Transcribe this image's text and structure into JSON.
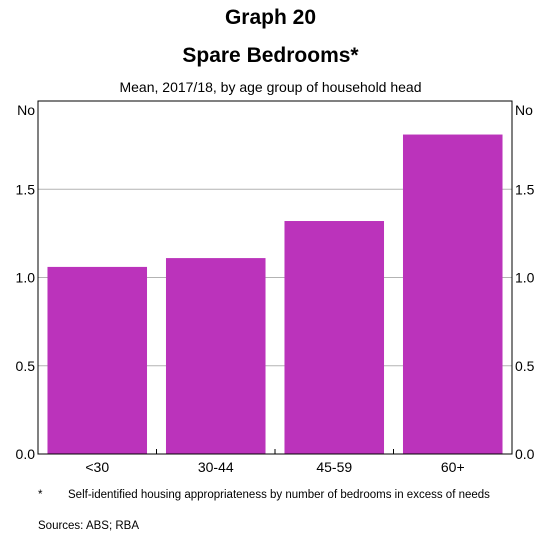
{
  "header": {
    "graph_number": "Graph 20",
    "title": "Spare Bedrooms*",
    "subtitle": "Mean, 2017/18, by age group of household head"
  },
  "footnote": {
    "marker": "*",
    "text": "Self-identified housing appropriateness by number of bedrooms in excess of needs"
  },
  "sources": "Sources: ABS; RBA",
  "colors": {
    "bar": "#bb33bb",
    "grid": "#b3b3b3",
    "axis": "#000000"
  },
  "chart_data": {
    "type": "bar",
    "title": "Spare Bedrooms*",
    "subtitle": "Mean, 2017/18, by age group of household head",
    "categories": [
      "<30",
      "30-44",
      "45-59",
      "60+"
    ],
    "values": [
      1.06,
      1.11,
      1.32,
      1.81
    ],
    "ylim": [
      0,
      2.0
    ],
    "yticks": [
      0.0,
      0.5,
      1.0,
      1.5
    ],
    "ytick_labels": [
      "0.0",
      "0.5",
      "1.0",
      "1.5"
    ],
    "ylabel_left": "No",
    "ylabel_right": "No",
    "grid": true,
    "legend": "none"
  }
}
